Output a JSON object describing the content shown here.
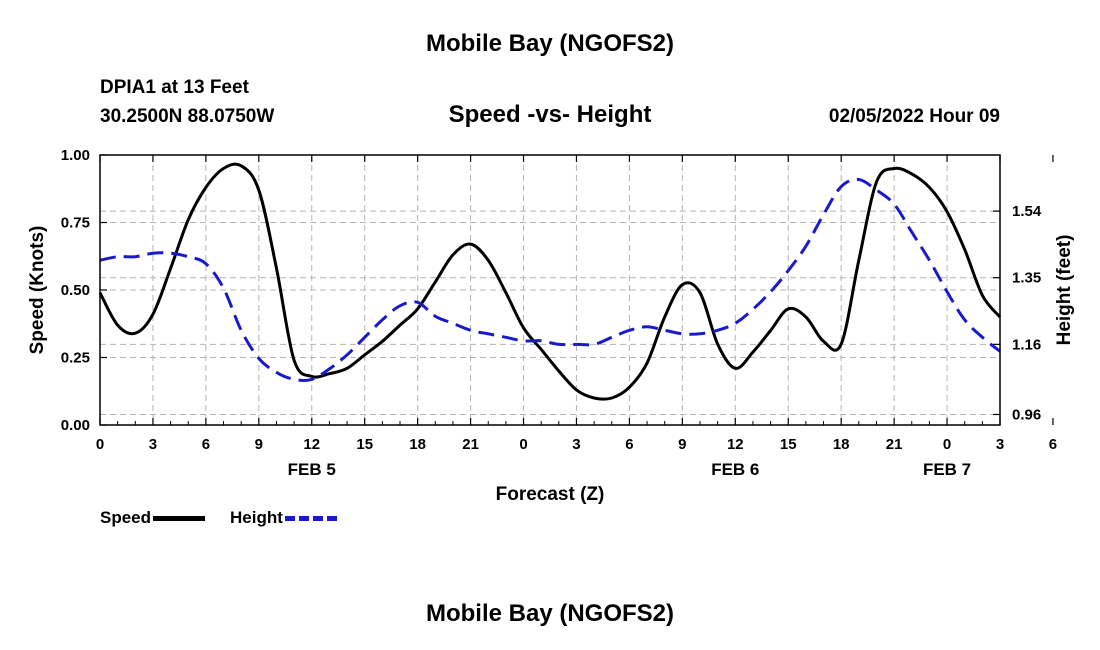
{
  "header": {
    "title": "Mobile Bay (NGOFS2)",
    "station": "DPIA1 at 13 Feet",
    "coords": "30.2500N  88.0750W",
    "subtitle": "Speed -vs- Height",
    "datetime": "02/05/2022 Hour 09"
  },
  "footer": {
    "title": "Mobile Bay (NGOFS2)"
  },
  "legend": {
    "speed_label": "Speed",
    "height_label": "Height"
  },
  "colors": {
    "speed": "#000000",
    "height": "#1a1acd",
    "grid": "#b4b4b4"
  },
  "chart_data": {
    "type": "line",
    "xlabel": "Forecast (Z)",
    "ylabel": "Speed (Knots)",
    "y2label": "Height (feet)",
    "x_hours": [
      0,
      51
    ],
    "x_tick_labels": [
      "0",
      "3",
      "6",
      "9",
      "12",
      "15",
      "18",
      "21",
      "0",
      "3",
      "6",
      "9",
      "12",
      "15",
      "18",
      "21",
      "0",
      "3",
      "6"
    ],
    "day_labels": [
      {
        "label": "FEB 5",
        "hour": 12
      },
      {
        "label": "FEB 6",
        "hour": 36
      },
      {
        "label": "FEB 7",
        "hour": 48
      }
    ],
    "ylim": [
      0,
      1
    ],
    "y_ticks": [
      {
        "value": 0,
        "label": "0.00"
      },
      {
        "value": 0.25,
        "label": "0.25"
      },
      {
        "value": 0.5,
        "label": "0.50"
      },
      {
        "value": 0.75,
        "label": "0.75"
      },
      {
        "value": 1,
        "label": "1.00"
      }
    ],
    "y2lim": [
      0.93,
      1.7
    ],
    "y2_ticks": [
      {
        "value": 0.96,
        "label": "0.96"
      },
      {
        "value": 1.16,
        "label": "1.16"
      },
      {
        "value": 1.35,
        "label": "1.35"
      },
      {
        "value": 1.54,
        "label": "1.54"
      }
    ],
    "grid": true,
    "series": [
      {
        "name": "Speed",
        "axis": "left",
        "style": "solid",
        "x": [
          0,
          1,
          2,
          3,
          4,
          5,
          6,
          7,
          8,
          9,
          10,
          11,
          12,
          13,
          14,
          15,
          16,
          17,
          18,
          19,
          20,
          21,
          22,
          23,
          24,
          25,
          26,
          27,
          28,
          29,
          30,
          31,
          32,
          33,
          34,
          35,
          36,
          37,
          38,
          39,
          40,
          41,
          42,
          43,
          44,
          45,
          46,
          47,
          48,
          49,
          50,
          51
        ],
        "y": [
          0.49,
          0.37,
          0.34,
          0.41,
          0.58,
          0.76,
          0.88,
          0.95,
          0.96,
          0.87,
          0.58,
          0.24,
          0.18,
          0.19,
          0.21,
          0.26,
          0.31,
          0.37,
          0.43,
          0.53,
          0.63,
          0.67,
          0.61,
          0.49,
          0.36,
          0.28,
          0.2,
          0.13,
          0.1,
          0.1,
          0.14,
          0.23,
          0.4,
          0.52,
          0.49,
          0.3,
          0.21,
          0.27,
          0.35,
          0.43,
          0.4,
          0.31,
          0.3,
          0.61,
          0.9,
          0.95,
          0.93,
          0.88,
          0.79,
          0.65,
          0.48,
          0.4
        ]
      },
      {
        "name": "Height",
        "axis": "right",
        "style": "dashed",
        "x": [
          0,
          1,
          2,
          3,
          4,
          5,
          6,
          7,
          8,
          9,
          10,
          11,
          12,
          13,
          14,
          15,
          16,
          17,
          18,
          19,
          20,
          21,
          22,
          23,
          24,
          25,
          26,
          27,
          28,
          29,
          30,
          31,
          32,
          33,
          34,
          35,
          36,
          37,
          38,
          39,
          40,
          41,
          42,
          43,
          44,
          45,
          46,
          47,
          48,
          49,
          50,
          51
        ],
        "y": [
          1.4,
          1.41,
          1.41,
          1.42,
          1.42,
          1.41,
          1.39,
          1.32,
          1.2,
          1.12,
          1.08,
          1.06,
          1.06,
          1.09,
          1.13,
          1.18,
          1.23,
          1.27,
          1.28,
          1.24,
          1.22,
          1.2,
          1.19,
          1.18,
          1.17,
          1.17,
          1.16,
          1.16,
          1.16,
          1.18,
          1.2,
          1.21,
          1.2,
          1.19,
          1.19,
          1.2,
          1.22,
          1.26,
          1.31,
          1.37,
          1.44,
          1.53,
          1.61,
          1.63,
          1.6,
          1.56,
          1.48,
          1.4,
          1.31,
          1.23,
          1.18,
          1.14
        ]
      }
    ]
  }
}
